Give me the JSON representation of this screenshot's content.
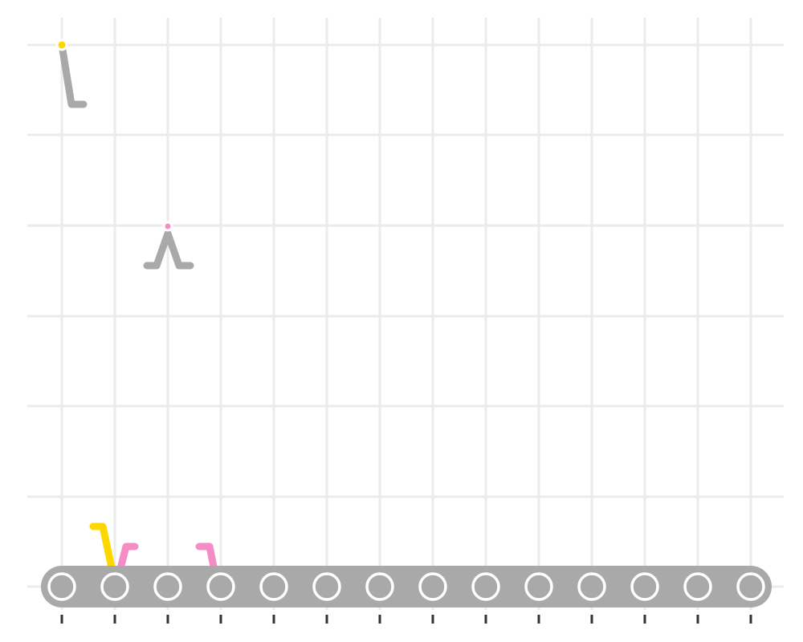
{
  "colors": {
    "background": "#ffffff",
    "grid": "#ebebeb",
    "belt": "#a9a9a9",
    "roller_fill": "#a9a9a9",
    "roller_stroke": "#ffffff",
    "tick": "#333333",
    "arm": "#a9a9a9",
    "yellow": "#ffd700",
    "pink": "#f58cc6"
  },
  "chart_data": {
    "type": "diagram",
    "grid": true,
    "columns": 14,
    "rows": 7,
    "rollers": 14,
    "ticks_below_belt": 14,
    "figures": [
      {
        "kind": "hanging-hook",
        "column": 1,
        "row_level": 6.0,
        "dot_color": "yellow"
      },
      {
        "kind": "inverted-v-stand",
        "column": 3,
        "row_level": 4.0,
        "dot_color": "pink"
      },
      {
        "kind": "hook-on-belt",
        "column": 2,
        "color": "yellow"
      },
      {
        "kind": "hook-on-belt",
        "column": 2,
        "color": "pink"
      },
      {
        "kind": "hook-on-belt",
        "column": 4,
        "color": "pink"
      }
    ]
  }
}
